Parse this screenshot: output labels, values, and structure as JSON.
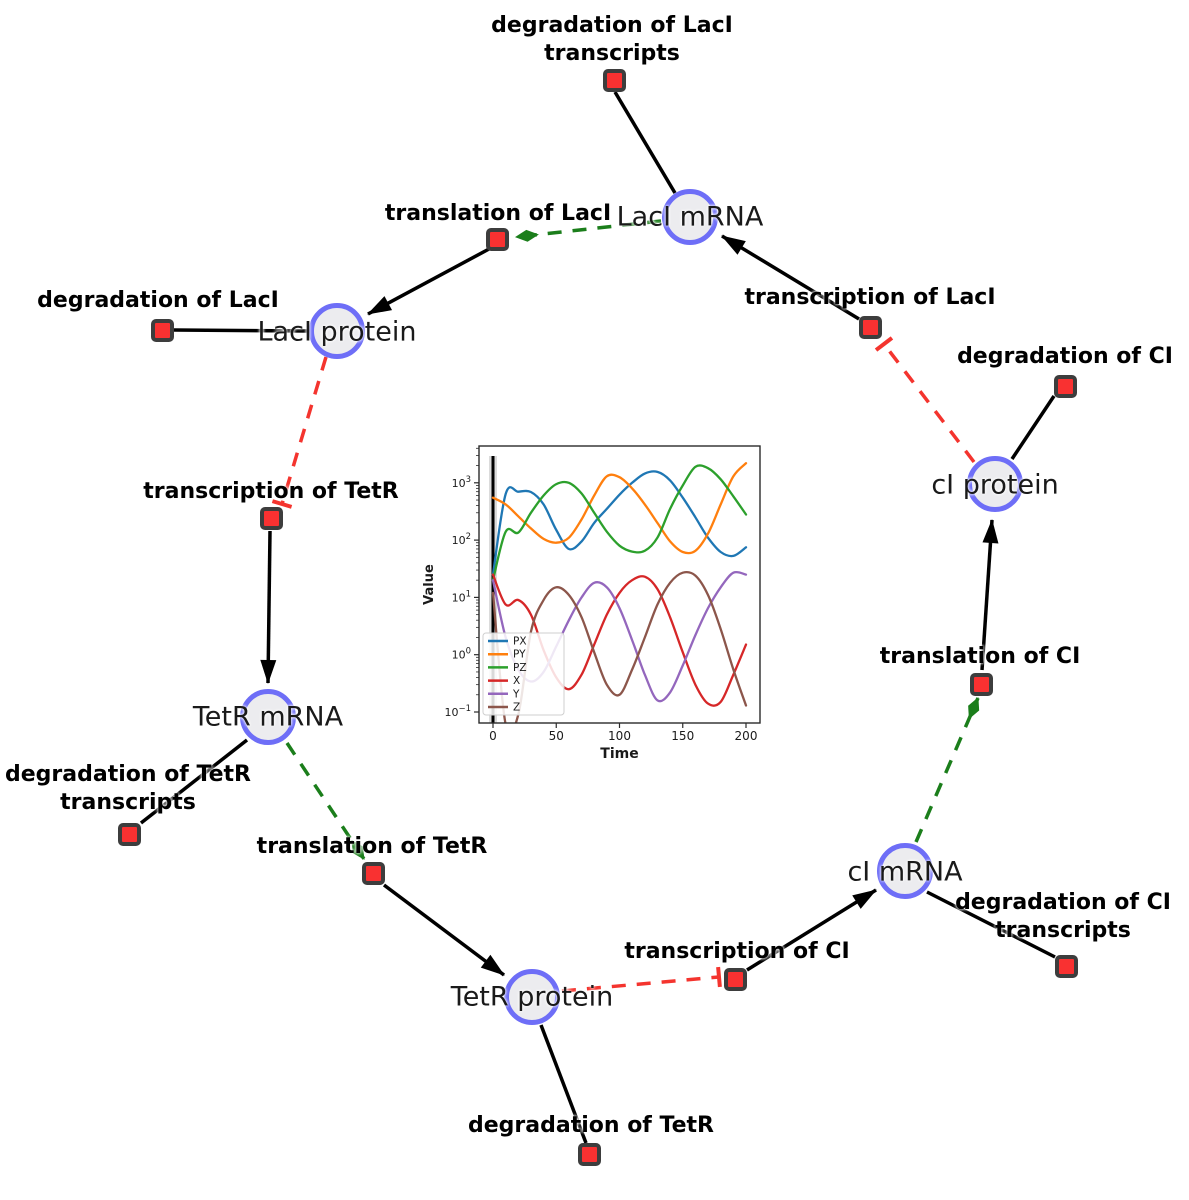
{
  "network": {
    "species": [
      {
        "id": "laci-mrna",
        "label": "LacI mRNA"
      },
      {
        "id": "laci-protein",
        "label": "LacI protein"
      },
      {
        "id": "tetr-mrna",
        "label": "TetR mRNA"
      },
      {
        "id": "tetr-protein",
        "label": "TetR protein"
      },
      {
        "id": "ci-mrna",
        "label": "cI mRNA"
      },
      {
        "id": "ci-protein",
        "label": "cI protein"
      }
    ],
    "reactions": [
      {
        "id": "degradation-of-laci-transcripts",
        "lines": [
          "degradation of LacI",
          "transcripts"
        ]
      },
      {
        "id": "translation-of-laci",
        "lines": [
          "translation of LacI"
        ]
      },
      {
        "id": "transcription-of-laci",
        "lines": [
          "transcription of LacI"
        ]
      },
      {
        "id": "degradation-of-laci",
        "lines": [
          "degradation of LacI"
        ]
      },
      {
        "id": "transcription-of-tetr",
        "lines": [
          "transcription of TetR"
        ]
      },
      {
        "id": "degradation-of-ci",
        "lines": [
          "degradation of CI"
        ]
      },
      {
        "id": "translation-of-ci",
        "lines": [
          "translation of CI"
        ]
      },
      {
        "id": "degradation-of-tetr-transcripts",
        "lines": [
          "degradation of TetR",
          "transcripts"
        ]
      },
      {
        "id": "translation-of-tetr",
        "lines": [
          "translation of TetR"
        ]
      },
      {
        "id": "transcription-of-ci",
        "lines": [
          "transcription of CI"
        ]
      },
      {
        "id": "degradation-of-ci-transcripts",
        "lines": [
          "degradation of CI",
          "transcripts"
        ]
      },
      {
        "id": "degradation-of-tetr",
        "lines": [
          "degradation of TetR"
        ]
      }
    ],
    "edges": [
      {
        "source": "LacI mRNA",
        "target": "degradation of LacI transcripts",
        "type": "reactant"
      },
      {
        "source": "LacI mRNA",
        "target": "translation of LacI",
        "type": "modifier"
      },
      {
        "source": "transcription of LacI",
        "target": "LacI mRNA",
        "type": "product"
      },
      {
        "source": "translation of LacI",
        "target": "LacI protein",
        "type": "product"
      },
      {
        "source": "LacI protein",
        "target": "degradation of LacI",
        "type": "reactant"
      },
      {
        "source": "LacI protein",
        "target": "transcription of TetR",
        "type": "inhibitor"
      },
      {
        "source": "transcription of TetR",
        "target": "TetR mRNA",
        "type": "product"
      },
      {
        "source": "TetR mRNA",
        "target": "degradation of TetR transcripts",
        "type": "reactant"
      },
      {
        "source": "TetR mRNA",
        "target": "translation of TetR",
        "type": "modifier"
      },
      {
        "source": "translation of TetR",
        "target": "TetR protein",
        "type": "product"
      },
      {
        "source": "TetR protein",
        "target": "degradation of TetR",
        "type": "reactant"
      },
      {
        "source": "TetR protein",
        "target": "transcription of CI",
        "type": "inhibitor"
      },
      {
        "source": "transcription of CI",
        "target": "cI mRNA",
        "type": "product"
      },
      {
        "source": "cI mRNA",
        "target": "degradation of CI transcripts",
        "type": "reactant"
      },
      {
        "source": "cI mRNA",
        "target": "translation of CI",
        "type": "modifier"
      },
      {
        "source": "translation of CI",
        "target": "cI protein",
        "type": "product"
      },
      {
        "source": "cI protein",
        "target": "degradation of CI",
        "type": "reactant"
      },
      {
        "source": "cI protein",
        "target": "transcription of LacI",
        "type": "inhibitor"
      }
    ]
  },
  "colors": {
    "species_fill": "#ececef",
    "species_border": "#6e6ef7",
    "reaction_fill": "#f93131",
    "reaction_border": "#3d3d3d",
    "edge": "#000000",
    "inhibition": "#f4342e",
    "modifier": "#1b7e1b",
    "label": "#000000",
    "species_label": "#1a1a1a"
  },
  "chart_data": {
    "type": "line",
    "title": "",
    "xlabel": "Time",
    "ylabel": "Value",
    "yscale": "log",
    "xlim": [
      -12,
      212
    ],
    "ylim": [
      0.1,
      4400
    ],
    "xticks": [
      0,
      50,
      100,
      150,
      200
    ],
    "ytick_exponents": [
      -1,
      0,
      1,
      2,
      3
    ],
    "grid": false,
    "legend_position": "lower left",
    "annotations": {
      "event_line_x": 0
    },
    "x": [
      0,
      10,
      20,
      30,
      40,
      50,
      60,
      70,
      80,
      90,
      100,
      110,
      120,
      130,
      140,
      150,
      160,
      170,
      180,
      190,
      200
    ],
    "series": [
      {
        "name": "PX",
        "color": "#1f77b4",
        "values": [
          25,
          640,
          700,
          690,
          420,
          150,
          70,
          95,
          200,
          350,
          620,
          1000,
          1450,
          1550,
          1100,
          550,
          250,
          110,
          62,
          53,
          75
        ]
      },
      {
        "name": "PY",
        "color": "#ff7f0e",
        "values": [
          550,
          420,
          260,
          160,
          105,
          90,
          110,
          230,
          600,
          1300,
          1250,
          800,
          420,
          200,
          95,
          62,
          65,
          130,
          420,
          1300,
          2200
        ]
      },
      {
        "name": "PZ",
        "color": "#2ca02c",
        "values": [
          20,
          140,
          135,
          300,
          600,
          950,
          1000,
          650,
          300,
          140,
          80,
          63,
          65,
          110,
          350,
          900,
          1900,
          1800,
          1150,
          580,
          280
        ]
      },
      {
        "name": "X",
        "color": "#d62728",
        "values": [
          25,
          7.5,
          9,
          5,
          1.2,
          0.4,
          0.25,
          0.45,
          1.5,
          5,
          12,
          20,
          23,
          14,
          4.5,
          1.1,
          0.3,
          0.14,
          0.15,
          0.45,
          1.5
        ]
      },
      {
        "name": "Y",
        "color": "#9467bd",
        "values": [
          20,
          2,
          0.55,
          0.34,
          0.5,
          1.4,
          4,
          10,
          18,
          15,
          6.5,
          1.8,
          0.45,
          0.16,
          0.22,
          0.65,
          2.2,
          6.5,
          15,
          27,
          25
        ]
      },
      {
        "name": "Z",
        "color": "#8c564b",
        "values": [
          12,
          0.06,
          0.09,
          2.5,
          9,
          15,
          11,
          4.5,
          1.1,
          0.3,
          0.2,
          0.55,
          2,
          7.5,
          18,
          27,
          24,
          11,
          2.8,
          0.55,
          0.13
        ]
      }
    ]
  }
}
